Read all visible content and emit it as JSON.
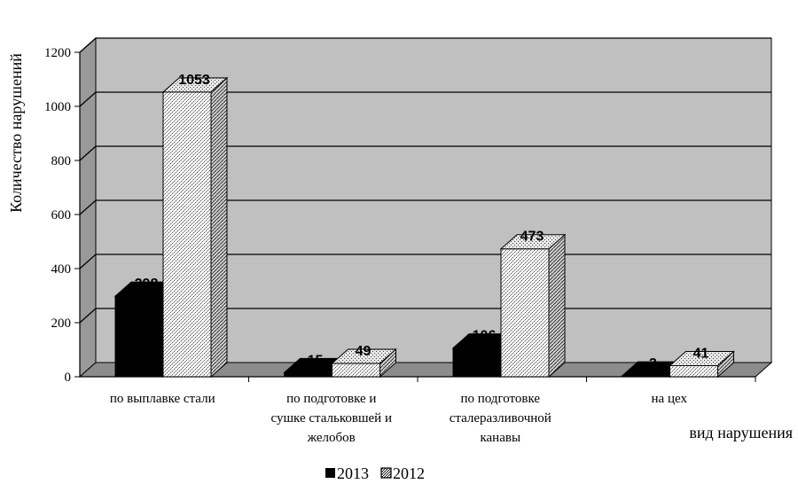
{
  "chart_data": {
    "type": "bar",
    "categories": [
      [
        "по выплавке стали"
      ],
      [
        "по подготовке и",
        "сушке стальковшей и",
        "желобов"
      ],
      [
        "по подготовке",
        "сталеразливочной",
        "канавы"
      ],
      [
        "на цех"
      ]
    ],
    "series": [
      {
        "name": "2013",
        "values": [
          298,
          15,
          106,
          3
        ]
      },
      {
        "name": "2012",
        "values": [
          1053,
          49,
          473,
          41
        ]
      }
    ],
    "xlabel": "вид нарушения",
    "ylabel": "Количество нарушений",
    "ylim": [
      0,
      1200
    ],
    "yticks": [
      0,
      200,
      400,
      600,
      800,
      1000,
      1200
    ],
    "grid": true,
    "legend": "bottom",
    "colors": {
      "wall": "#c0c0c0",
      "wall_side": "#999999",
      "floor": "#8c8c8c",
      "series_2013": "#000000",
      "series_2012": "#ffffff"
    }
  }
}
